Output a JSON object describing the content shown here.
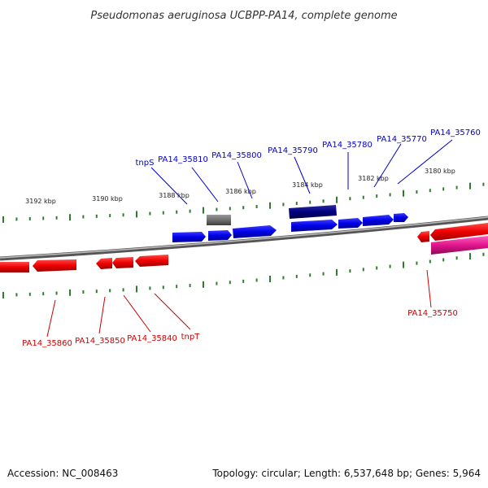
{
  "title": "Pseudomonas aeruginosa UCBPP-PA14, complete genome",
  "footer": {
    "accession": "Accession: NC_008463",
    "summary": "Topology: circular; Length: 6,537,648 bp; Genes: 5,964"
  },
  "scale_labels": [
    "3192 kbp",
    "3190 kbp",
    "3188 kbp",
    "3186 kbp",
    "3184 kbp",
    "3182 kbp",
    "3180 kbp"
  ],
  "top_gene_labels": [
    "tnpS",
    "PA14_35810",
    "PA14_35800",
    "PA14_35790",
    "PA14_35780",
    "PA14_35770",
    "PA14_35760"
  ],
  "bottom_gene_labels": [
    "PA14_35860",
    "PA14_35850",
    "PA14_35840",
    "tnpT",
    "PA14_35750"
  ],
  "colors": {
    "forward_gene": "#0000ee",
    "reverse_gene": "#ee0000",
    "pseudo_gene": "#777777",
    "dark_gene": "#000080",
    "rna_gene": "#e0148c",
    "backbone": "#8a8a8a",
    "tick": "#2d7d2d",
    "label_forward": "#0000cc",
    "label_reverse": "#cc0000"
  }
}
